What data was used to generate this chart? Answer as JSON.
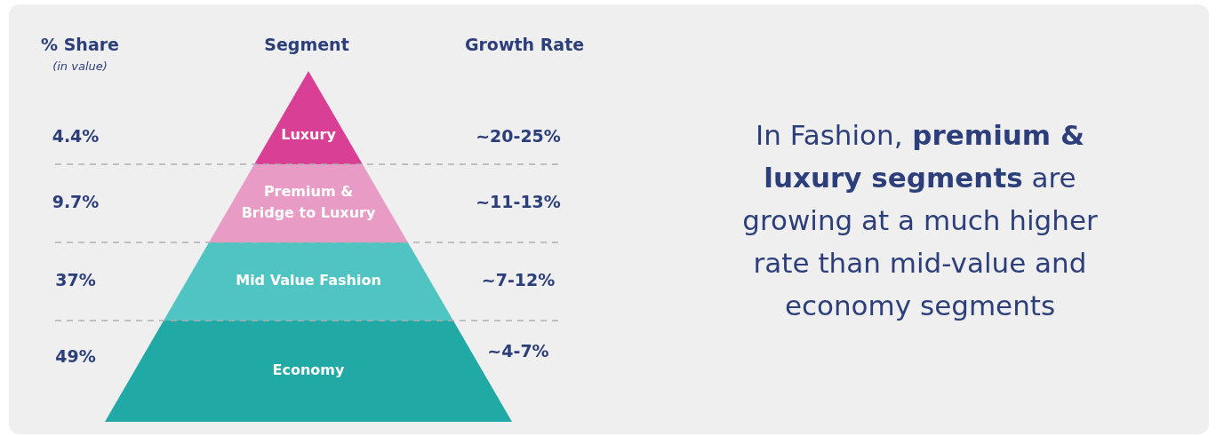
{
  "chart_data": {
    "type": "other",
    "ylabel": "% Share",
    "xlabel": "Segment",
    "y2label": "Growth Rate",
    "categories": [
      "Luxury",
      "Premium & Bridge to Luxury",
      "Mid Value Fashion",
      "Economy"
    ],
    "values": [
      4.4,
      9.7,
      37,
      49
    ],
    "value_labels": [
      "4.4%",
      "9.7%",
      "37%",
      "49%"
    ],
    "colors": [
      "#d93f95",
      "#e89cc5",
      "#50c4c2",
      "#21a9a5"
    ],
    "annotations": [
      "(in value)",
      "~20-25%",
      "~11-13%",
      "~7-12%",
      "~4-7%",
      "In Fashion,",
      "premium & luxury segments",
      "are growing at a much higher rate than mid-value and economy segments"
    ]
  }
}
